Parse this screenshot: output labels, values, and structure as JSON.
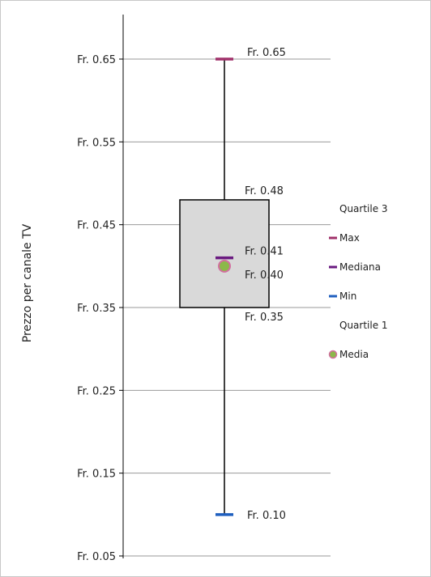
{
  "chart_data": {
    "type": "box",
    "ylabel": "Prezzo per canale TV",
    "ylim": [
      0.05,
      0.65
    ],
    "yticks": [
      0.05,
      0.15,
      0.25,
      0.35,
      0.45,
      0.55,
      0.65
    ],
    "ytick_labels": [
      "Fr. 0.05",
      "Fr. 0.15",
      "Fr. 0.25",
      "Fr. 0.35",
      "Fr. 0.45",
      "Fr. 0.55",
      "Fr. 0.65"
    ],
    "grid": true,
    "box": {
      "max": 0.65,
      "quartile3": 0.48,
      "median": 0.41,
      "mean": 0.4,
      "quartile1": 0.35,
      "min": 0.1
    },
    "labels": {
      "max": "Fr. 0.65",
      "quartile3": "Fr. 0.48",
      "median": "Fr. 0.41",
      "mean": "Fr. 0.40",
      "quartile1": "Fr. 0.35",
      "min": "Fr. 0.10"
    },
    "legend": {
      "placement": "right",
      "items": [
        {
          "key": "quartile3",
          "label": "Quartile 3",
          "color": ""
        },
        {
          "key": "max",
          "label": "Max",
          "color": "#a0306a"
        },
        {
          "key": "median",
          "label": "Mediana",
          "color": "#6a1a80"
        },
        {
          "key": "min",
          "label": "Min",
          "color": "#1f5fbf"
        },
        {
          "key": "quartile1",
          "label": "Quartile 1",
          "color": ""
        },
        {
          "key": "mean",
          "label": "Media",
          "color": "#8cb84a"
        }
      ]
    },
    "colors": {
      "box_fill": "#d9d9d9",
      "box_stroke": "#000000",
      "whisker": "#000000",
      "grid": "#9a9a9a",
      "mean_edge": "#d36fa0"
    }
  }
}
